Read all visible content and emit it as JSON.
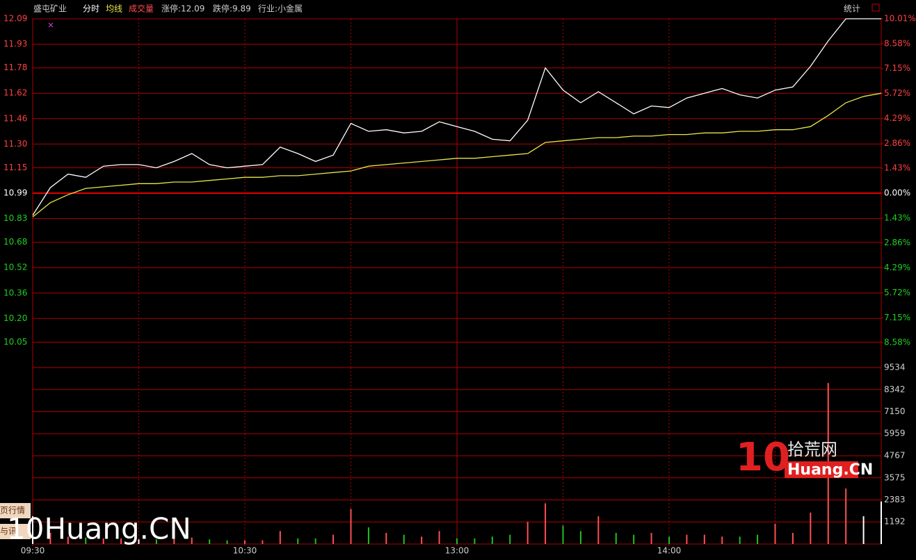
{
  "header": {
    "stock": "盛屯矿业",
    "tabs": [
      "分时",
      "均线",
      "成交量"
    ],
    "limit_up": "涨停:12.09",
    "limit_down": "跌停:9.89",
    "industry": "行业:小金属",
    "stats": "统计"
  },
  "side_tabs": [
    "页行情",
    "与讯"
  ],
  "watermark": {
    "logo_number": "10",
    "logo_cn": "拾荒网",
    "logo_en": "Huang.CN",
    "bottom": "10Huang.CN"
  },
  "chart_data": [
    {
      "type": "line",
      "x": [
        0,
        5,
        10,
        15,
        20,
        25,
        30,
        35,
        40,
        45,
        50,
        55,
        60,
        65,
        70,
        75,
        80,
        85,
        90,
        95,
        100,
        105,
        110,
        115,
        120,
        125,
        130,
        135,
        140,
        145,
        150,
        155,
        160,
        165,
        170,
        175,
        180,
        185,
        190,
        195,
        200,
        205,
        210,
        215,
        220,
        225,
        230,
        235,
        240
      ],
      "xlim": [
        0,
        240
      ],
      "ylim": [
        9.89,
        12.09
      ],
      "yticks": [
        12.09,
        11.93,
        11.78,
        11.62,
        11.46,
        {
          "value": 11.3,
          "label": "11.30"
        },
        11.15,
        10.99,
        10.83,
        10.68,
        10.52,
        10.36,
        {
          "value": 10.2,
          "label": "10.20"
        },
        10.05
      ],
      "y2lim": [
        -10.01,
        10.01
      ],
      "y2ticks": [
        {
          "value": 10.01,
          "label": "10.01%"
        },
        {
          "value": 8.58,
          "label": "8.58%"
        },
        {
          "value": 7.15,
          "label": "7.15%"
        },
        {
          "value": 5.72,
          "label": "5.72%"
        },
        {
          "value": 4.29,
          "label": "4.29%"
        },
        {
          "value": 2.86,
          "label": "2.86%"
        },
        {
          "value": 1.43,
          "label": "1.43%"
        },
        {
          "value": 0,
          "label": "0.00%"
        },
        {
          "value": -1.43,
          "label": "1.43%"
        },
        {
          "value": -2.86,
          "label": "2.86%"
        },
        {
          "value": -4.29,
          "label": "4.29%"
        },
        {
          "value": -5.72,
          "label": "5.72%"
        },
        {
          "value": -7.15,
          "label": "7.15%"
        },
        {
          "value": -8.58,
          "label": "8.58%"
        }
      ],
      "grid": true,
      "series": [
        {
          "name": "分时",
          "color": "#ffffff",
          "values": [
            10.85,
            11.025,
            11.11,
            11.09,
            11.16,
            11.17,
            11.17,
            11.15,
            11.19,
            11.24,
            11.17,
            11.15,
            11.16,
            11.17,
            11.28,
            11.24,
            11.19,
            11.23,
            11.43,
            11.38,
            11.39,
            11.37,
            11.38,
            11.44,
            11.41,
            11.38,
            11.33,
            11.32,
            11.45,
            11.78,
            11.64,
            11.56,
            11.63,
            11.56,
            11.49,
            11.54,
            11.53,
            11.59,
            11.62,
            11.65,
            11.61,
            11.59,
            11.64,
            11.66,
            11.79,
            11.95,
            12.09,
            12.09,
            12.09
          ]
        },
        {
          "name": "均线",
          "color": "#e8e84a",
          "values": [
            10.84,
            10.93,
            10.98,
            11.02,
            11.03,
            11.04,
            11.05,
            11.05,
            11.06,
            11.06,
            11.07,
            11.08,
            11.09,
            11.09,
            11.1,
            11.1,
            11.11,
            11.12,
            11.13,
            11.16,
            11.17,
            11.18,
            11.19,
            11.2,
            11.21,
            11.21,
            11.22,
            11.23,
            11.24,
            11.31,
            11.32,
            11.33,
            11.34,
            11.34,
            11.35,
            11.35,
            11.36,
            11.36,
            11.37,
            11.37,
            11.38,
            11.38,
            11.39,
            11.39,
            11.41,
            11.48,
            11.56,
            11.6,
            11.62
          ]
        }
      ]
    },
    {
      "type": "bar",
      "x": [
        0,
        5,
        10,
        15,
        20,
        25,
        30,
        35,
        40,
        45,
        50,
        55,
        60,
        65,
        70,
        75,
        80,
        85,
        90,
        95,
        100,
        105,
        110,
        115,
        120,
        125,
        130,
        135,
        140,
        145,
        150,
        155,
        160,
        165,
        170,
        175,
        180,
        185,
        190,
        195,
        200,
        205,
        210,
        215,
        220,
        225,
        230,
        235,
        240
      ],
      "xlim": [
        0,
        240
      ],
      "xticks": [
        {
          "value": 0,
          "label": "09:30"
        },
        {
          "value": 60,
          "label": "10:30"
        },
        {
          "value": 120,
          "label": "13:00"
        },
        {
          "value": 180,
          "label": "14:00"
        }
      ],
      "ylim": [
        0,
        9534
      ],
      "yticks": [
        9534,
        8342,
        7150,
        5959,
        4767,
        3575,
        2383,
        1192
      ],
      "grid": true,
      "colors": {
        "up": "#ff5050",
        "down": "#20c020",
        "flat": "#ffffff"
      },
      "values": [
        1500,
        600,
        400,
        350,
        300,
        300,
        250,
        250,
        300,
        350,
        250,
        200,
        200,
        200,
        700,
        300,
        300,
        500,
        1900,
        900,
        600,
        500,
        400,
        700,
        300,
        300,
        400,
        500,
        1200,
        2200,
        1000,
        700,
        1500,
        600,
        500,
        600,
        400,
        500,
        500,
        400,
        400,
        500,
        1100,
        600,
        1700,
        8700,
        3000,
        1500,
        2300
      ]
    }
  ]
}
